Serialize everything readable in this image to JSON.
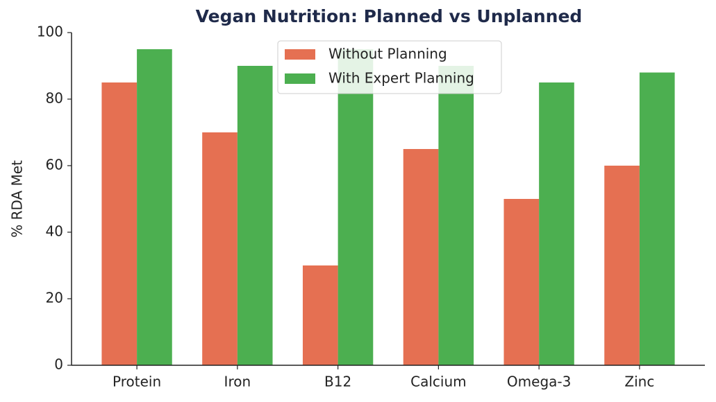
{
  "chart_data": {
    "type": "bar",
    "title": "Vegan Nutrition: Planned vs Unplanned",
    "y_label": "% RDA Met",
    "categories": [
      "Protein",
      "Iron",
      "B12",
      "Calcium",
      "Omega-3",
      "Zinc"
    ],
    "series": [
      {
        "name": "Without Planning",
        "color": "#e57052",
        "values": [
          85,
          70,
          30,
          65,
          50,
          60
        ]
      },
      {
        "name": "With Expert Planning",
        "color": "#4caf50",
        "values": [
          95,
          90,
          95,
          90,
          85,
          88
        ]
      }
    ],
    "ylim": [
      0,
      100
    ],
    "yticks": [
      0,
      20,
      40,
      60,
      80,
      100
    ],
    "grid": false,
    "legend": "upper center"
  }
}
